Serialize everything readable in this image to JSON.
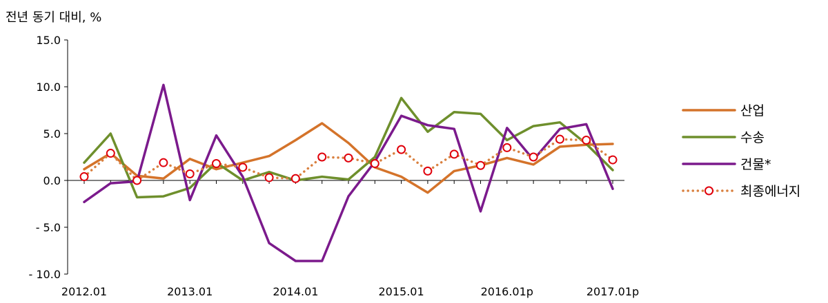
{
  "chart_data": {
    "type": "line",
    "ylabel": "전년 동기 대비, %",
    "ylim": [
      -10,
      15
    ],
    "yticks": [
      15,
      10,
      5,
      0,
      -5,
      -10
    ],
    "ytick_labels": [
      "15.0",
      "10.0",
      "5.0",
      "0.0",
      "- 5.0",
      "- 10.0"
    ],
    "xtick_labels": [
      {
        "index": 0,
        "label": "2012.01"
      },
      {
        "index": 4,
        "label": "2013.01"
      },
      {
        "index": 8,
        "label": "2014.01"
      },
      {
        "index": 12,
        "label": "2015.01"
      },
      {
        "index": 16,
        "label": "2016.01p"
      },
      {
        "index": 20,
        "label": "2017.01p"
      }
    ],
    "legend_position": "right",
    "series": [
      {
        "name": "산업",
        "color": "#d4732a",
        "style": "solid",
        "values": [
          1.2,
          2.9,
          0.5,
          0.2,
          2.3,
          1.2,
          1.9,
          2.6,
          4.3,
          6.1,
          4.0,
          1.4,
          0.4,
          -1.3,
          1.0,
          1.6,
          2.4,
          1.7,
          3.6,
          3.8,
          3.9
        ]
      },
      {
        "name": "수송",
        "color": "#6e8f2c",
        "style": "solid",
        "values": [
          1.9,
          5.0,
          -1.8,
          -1.7,
          -0.8,
          1.9,
          0.0,
          0.9,
          0.0,
          0.4,
          0.1,
          2.5,
          8.8,
          5.2,
          7.3,
          7.1,
          4.3,
          5.8,
          6.2,
          3.9,
          1.1
        ]
      },
      {
        "name": "건물*",
        "color": "#7b1a8c",
        "style": "solid",
        "values": [
          -2.3,
          -0.3,
          -0.1,
          10.2,
          -2.1,
          4.8,
          0.4,
          -6.7,
          -8.6,
          -8.6,
          -1.7,
          2.0,
          6.9,
          5.9,
          5.5,
          -3.3,
          5.6,
          2.2,
          5.5,
          6.0,
          -0.9
        ]
      },
      {
        "name": "최종에너지",
        "color": "#d9803f",
        "style": "dotted",
        "marker": "circle",
        "marker_color": "#e0000b",
        "values": [
          0.4,
          2.9,
          0.0,
          1.9,
          0.7,
          1.8,
          1.4,
          0.3,
          0.2,
          2.5,
          2.4,
          1.8,
          3.3,
          1.0,
          2.8,
          1.6,
          3.5,
          2.5,
          4.4,
          4.3,
          2.2
        ]
      }
    ]
  }
}
